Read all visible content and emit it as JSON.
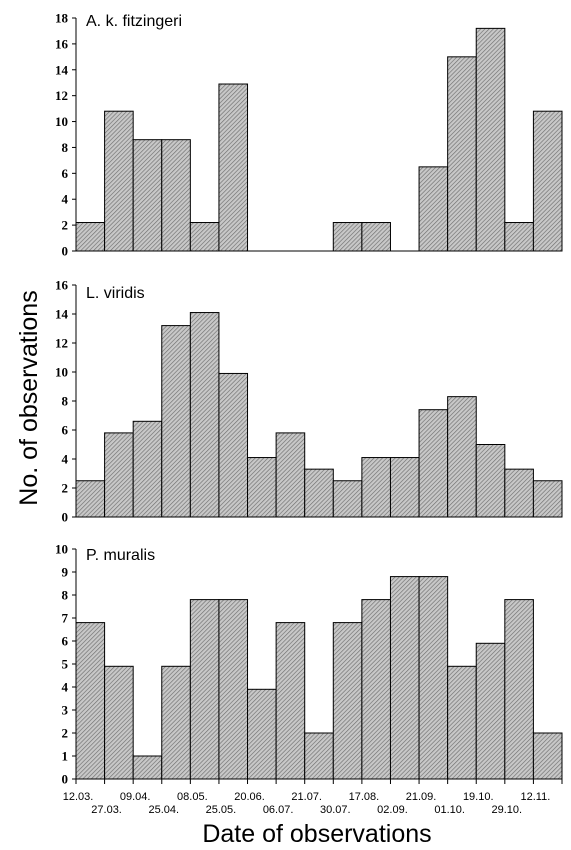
{
  "figure": {
    "ylabel": "No. of observations",
    "xlabel": "Date of observations",
    "x_tick_labels_upper": [
      "12.03.",
      "09.04.",
      "08.05.",
      "20.06.",
      "21.07.",
      "17.08.",
      "21.09.",
      "19.10.",
      "12.11."
    ],
    "x_tick_labels_lower": [
      "27.03.",
      "25.04.",
      "25.05.",
      "06.07.",
      "30.07.",
      "02.09.",
      "01.10.",
      "29.10."
    ],
    "bar_fill": "#c8c8c8",
    "bar_hatch": "#6e6e6e",
    "axis_color": "#000000"
  },
  "chart_data": [
    {
      "type": "bar",
      "title": "A. k. fitzingeri",
      "categories": [
        "12.03.",
        "27.03.",
        "09.04.",
        "25.04.",
        "08.05.",
        "25.05.",
        "20.06.",
        "06.07.",
        "21.07.",
        "30.07.",
        "17.08.",
        "02.09.",
        "21.09.",
        "01.10.",
        "19.10.",
        "29.10.",
        "12.11."
      ],
      "values": [
        2.2,
        10.8,
        8.6,
        8.6,
        2.2,
        12.9,
        0,
        0,
        0,
        2.2,
        2.2,
        0,
        6.5,
        15.0,
        17.2,
        2.2,
        10.8
      ],
      "yticks": [
        0,
        2,
        4,
        6,
        8,
        10,
        12,
        14,
        16,
        18
      ],
      "ylim": [
        0,
        18
      ]
    },
    {
      "type": "bar",
      "title": "L. viridis",
      "categories": [
        "12.03.",
        "27.03.",
        "09.04.",
        "25.04.",
        "08.05.",
        "25.05.",
        "20.06.",
        "06.07.",
        "21.07.",
        "30.07.",
        "17.08.",
        "02.09.",
        "21.09.",
        "01.10.",
        "19.10.",
        "29.10.",
        "12.11."
      ],
      "values": [
        2.5,
        5.8,
        6.6,
        13.2,
        14.1,
        9.9,
        4.1,
        5.8,
        3.3,
        2.5,
        4.1,
        4.1,
        7.4,
        8.3,
        5.0,
        3.3,
        2.5
      ],
      "yticks": [
        0,
        2,
        4,
        6,
        8,
        10,
        12,
        14,
        16
      ],
      "ylim": [
        0,
        16
      ]
    },
    {
      "type": "bar",
      "title": "P. muralis",
      "categories": [
        "12.03.",
        "27.03.",
        "09.04.",
        "25.04.",
        "08.05.",
        "25.05.",
        "20.06.",
        "06.07.",
        "21.07.",
        "30.07.",
        "17.08.",
        "02.09.",
        "21.09.",
        "01.10.",
        "19.10.",
        "29.10.",
        "12.11."
      ],
      "values": [
        6.8,
        4.9,
        1.0,
        4.9,
        7.8,
        7.8,
        3.9,
        6.8,
        2.0,
        6.8,
        7.8,
        8.8,
        8.8,
        4.9,
        5.9,
        7.8,
        2.0
      ],
      "yticks": [
        0,
        1,
        2,
        3,
        4,
        5,
        6,
        7,
        8,
        9,
        10
      ],
      "ylim": [
        0,
        10
      ]
    }
  ]
}
